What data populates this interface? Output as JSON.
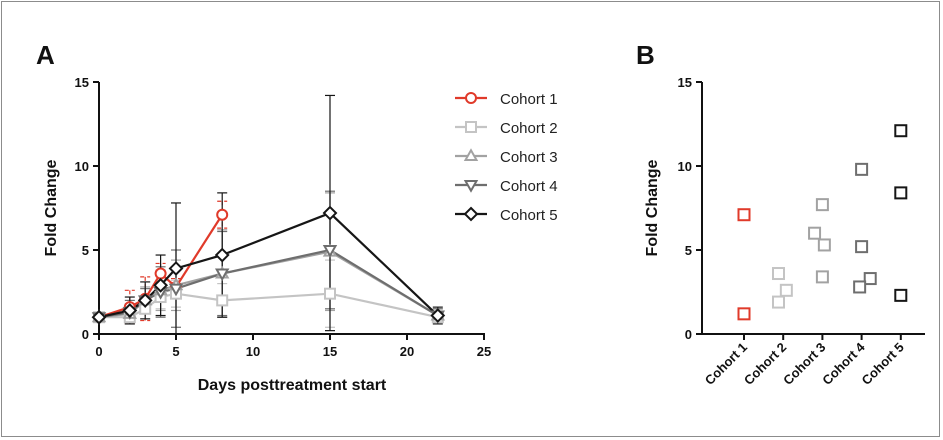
{
  "chart_data": [
    {
      "panel": "A",
      "type": "line",
      "xlabel": "Days posttreatment start",
      "ylabel": "Fold Change",
      "xlim": [
        0,
        25
      ],
      "ylim": [
        0,
        15
      ],
      "xticks": [
        0,
        5,
        10,
        15,
        20,
        25
      ],
      "yticks": [
        0,
        5,
        10,
        15
      ],
      "grid": false,
      "legend_position": "top-right",
      "series": [
        {
          "name": "Cohort 1",
          "color": "#e03a2a",
          "marker": "circle",
          "x": [
            0,
            2,
            3,
            4,
            5,
            8
          ],
          "y": [
            1.0,
            1.6,
            2.1,
            3.6,
            2.8,
            7.1
          ],
          "err": [
            0.1,
            1.0,
            1.3,
            0.6,
            0.5,
            0.8
          ]
        },
        {
          "name": "Cohort 2",
          "color": "#c4c4c4",
          "marker": "square",
          "x": [
            0,
            2,
            3,
            4,
            5,
            8,
            15,
            22
          ],
          "y": [
            1.0,
            1.0,
            1.5,
            2.2,
            2.4,
            2.0,
            2.4,
            1.0
          ],
          "err": [
            0.1,
            0.3,
            0.6,
            0.7,
            0.8,
            1.0,
            2.0,
            0.3
          ]
        },
        {
          "name": "Cohort 3",
          "color": "#a2a2a2",
          "marker": "triangle-up",
          "x": [
            0,
            2,
            3,
            4,
            5,
            8,
            15,
            22
          ],
          "y": [
            1.0,
            1.2,
            2.0,
            2.6,
            2.9,
            3.6,
            4.9,
            1.1
          ],
          "err": [
            0.1,
            0.6,
            0.8,
            1.2,
            1.5,
            2.6,
            3.5,
            0.4
          ]
        },
        {
          "name": "Cohort 4",
          "color": "#6e6e6e",
          "marker": "triangle-down",
          "x": [
            0,
            2,
            3,
            4,
            5,
            8,
            15,
            22
          ],
          "y": [
            1.0,
            1.3,
            2.0,
            2.5,
            2.7,
            3.6,
            5.0,
            1.1
          ],
          "err": [
            0.1,
            0.7,
            0.7,
            1.5,
            2.3,
            2.5,
            3.5,
            0.4
          ]
        },
        {
          "name": "Cohort 5",
          "color": "#161616",
          "marker": "diamond",
          "x": [
            0,
            2,
            3,
            4,
            5,
            8,
            15,
            22
          ],
          "y": [
            1.0,
            1.4,
            2.0,
            2.9,
            3.9,
            4.7,
            7.2,
            1.1
          ],
          "err": [
            0.1,
            0.8,
            1.1,
            1.8,
            3.9,
            3.7,
            7.0,
            0.5
          ]
        }
      ]
    },
    {
      "panel": "B",
      "type": "scatter",
      "ylabel": "Fold Change",
      "ylim": [
        0,
        15
      ],
      "yticks": [
        0,
        5,
        10,
        15
      ],
      "categories": [
        "Cohort 1",
        "Cohort 2",
        "Cohort 3",
        "Cohort 4",
        "Cohort 5"
      ],
      "grid": false,
      "series": [
        {
          "name": "Cohort 1",
          "color": "#e03a2a",
          "values": [
            7.1,
            1.2
          ],
          "offsets": [
            0,
            0
          ]
        },
        {
          "name": "Cohort 2",
          "color": "#c4c4c4",
          "values": [
            3.6,
            2.6,
            1.9
          ],
          "offsets": [
            -0.12,
            0.08,
            -0.12
          ]
        },
        {
          "name": "Cohort 3",
          "color": "#a2a2a2",
          "values": [
            7.7,
            6.0,
            5.3,
            3.4
          ],
          "offsets": [
            0,
            -0.2,
            0.05,
            0
          ]
        },
        {
          "name": "Cohort 4",
          "color": "#6e6e6e",
          "values": [
            9.8,
            5.2,
            3.3,
            2.8
          ],
          "offsets": [
            0,
            0,
            0.22,
            -0.05
          ]
        },
        {
          "name": "Cohort 5",
          "color": "#161616",
          "values": [
            12.1,
            8.4,
            2.3
          ],
          "offsets": [
            0,
            0,
            0
          ]
        }
      ]
    }
  ]
}
